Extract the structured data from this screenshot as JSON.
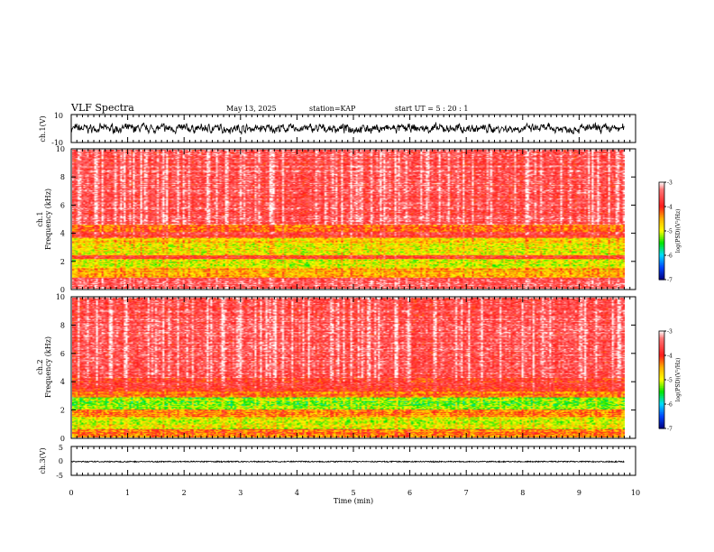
{
  "header": {
    "title": "VLF Spectra",
    "date": "May 13, 2025",
    "station": "station=KAP",
    "start": "start UT =  5 : 20 : 1"
  },
  "colorbar": {
    "label": "log(PSD)(V²/Hz)",
    "ticks": [
      "-3",
      "-4",
      "-5",
      "-6",
      "-7"
    ],
    "colors": [
      "#ffffff",
      "#ff1a1a",
      "#ffb000",
      "#ffff00",
      "#00e000",
      "#00e0ff",
      "#0050ff",
      "#000080"
    ]
  },
  "chart_data": [
    {
      "type": "line",
      "panel": "ch1-waveform",
      "ylabel": "ch.1(V)",
      "ylim": [
        -10,
        10
      ],
      "ytick_labels": [
        "10",
        "-10"
      ],
      "xlim": [
        0,
        10
      ],
      "data_end_min": 9.8,
      "typical_amplitude": [
        -3,
        3
      ],
      "color": "#000000"
    },
    {
      "type": "heatmap",
      "panel": "ch1-spectrogram",
      "ylabel_top": "ch.1",
      "ylabel": "Frequency (kHz)",
      "ylim": [
        0,
        10
      ],
      "ytick_labels": [
        "10",
        "8",
        "6",
        "4",
        "2",
        "0"
      ],
      "xlim": [
        0,
        10
      ],
      "data_end_min": 9.8,
      "zlabel": "log(PSD)(V²/Hz)",
      "zlim": [
        -7,
        -3
      ],
      "bands": [
        {
          "f": [
            0,
            0.8
          ],
          "z": -3.6
        },
        {
          "f": [
            0.8,
            1.5
          ],
          "z": -4.6
        },
        {
          "f": [
            1.5,
            2.1
          ],
          "z": -5.0
        },
        {
          "f": [
            2.1,
            2.4
          ],
          "z": -3.9
        },
        {
          "f": [
            2.4,
            3.2
          ],
          "z": -5.0
        },
        {
          "f": [
            3.2,
            3.7
          ],
          "z": -4.7
        },
        {
          "f": [
            3.7,
            4.1
          ],
          "z": -3.9
        },
        {
          "f": [
            4.1,
            4.6
          ],
          "z": -4.3
        },
        {
          "f": [
            4.6,
            10
          ],
          "z": -3.6
        }
      ]
    },
    {
      "type": "heatmap",
      "panel": "ch2-spectrogram",
      "ylabel_top": "ch.2",
      "ylabel": "Frequency (kHz)",
      "ylim": [
        0,
        10
      ],
      "ytick_labels": [
        "10",
        "8",
        "6",
        "4",
        "2",
        "0"
      ],
      "xlim": [
        0,
        10
      ],
      "data_end_min": 9.8,
      "zlabel": "log(PSD)(V²/Hz)",
      "zlim": [
        -7,
        -3
      ],
      "bands": [
        {
          "f": [
            0,
            0.6
          ],
          "z": -4.3
        },
        {
          "f": [
            0.6,
            1.5
          ],
          "z": -5.0
        },
        {
          "f": [
            1.5,
            2.0
          ],
          "z": -4.4
        },
        {
          "f": [
            2.0,
            2.9
          ],
          "z": -5.3
        },
        {
          "f": [
            2.9,
            3.3
          ],
          "z": -4.4
        },
        {
          "f": [
            3.3,
            4.3
          ],
          "z": -3.9
        },
        {
          "f": [
            4.3,
            10
          ],
          "z": -3.6
        }
      ]
    },
    {
      "type": "line",
      "panel": "ch3-waveform",
      "ylabel": "ch.3(V)",
      "ylim": [
        -5,
        5
      ],
      "ytick_labels": [
        "5",
        "0",
        "-5"
      ],
      "xlim": [
        0,
        10
      ],
      "data_end_min": 9.8,
      "typical_amplitude": [
        -0.7,
        0.2
      ],
      "color": "#000000"
    }
  ],
  "xaxis": {
    "label": "Time (min)",
    "tick_labels": [
      "0",
      "1",
      "2",
      "3",
      "4",
      "5",
      "6",
      "7",
      "8",
      "9",
      "10"
    ]
  }
}
